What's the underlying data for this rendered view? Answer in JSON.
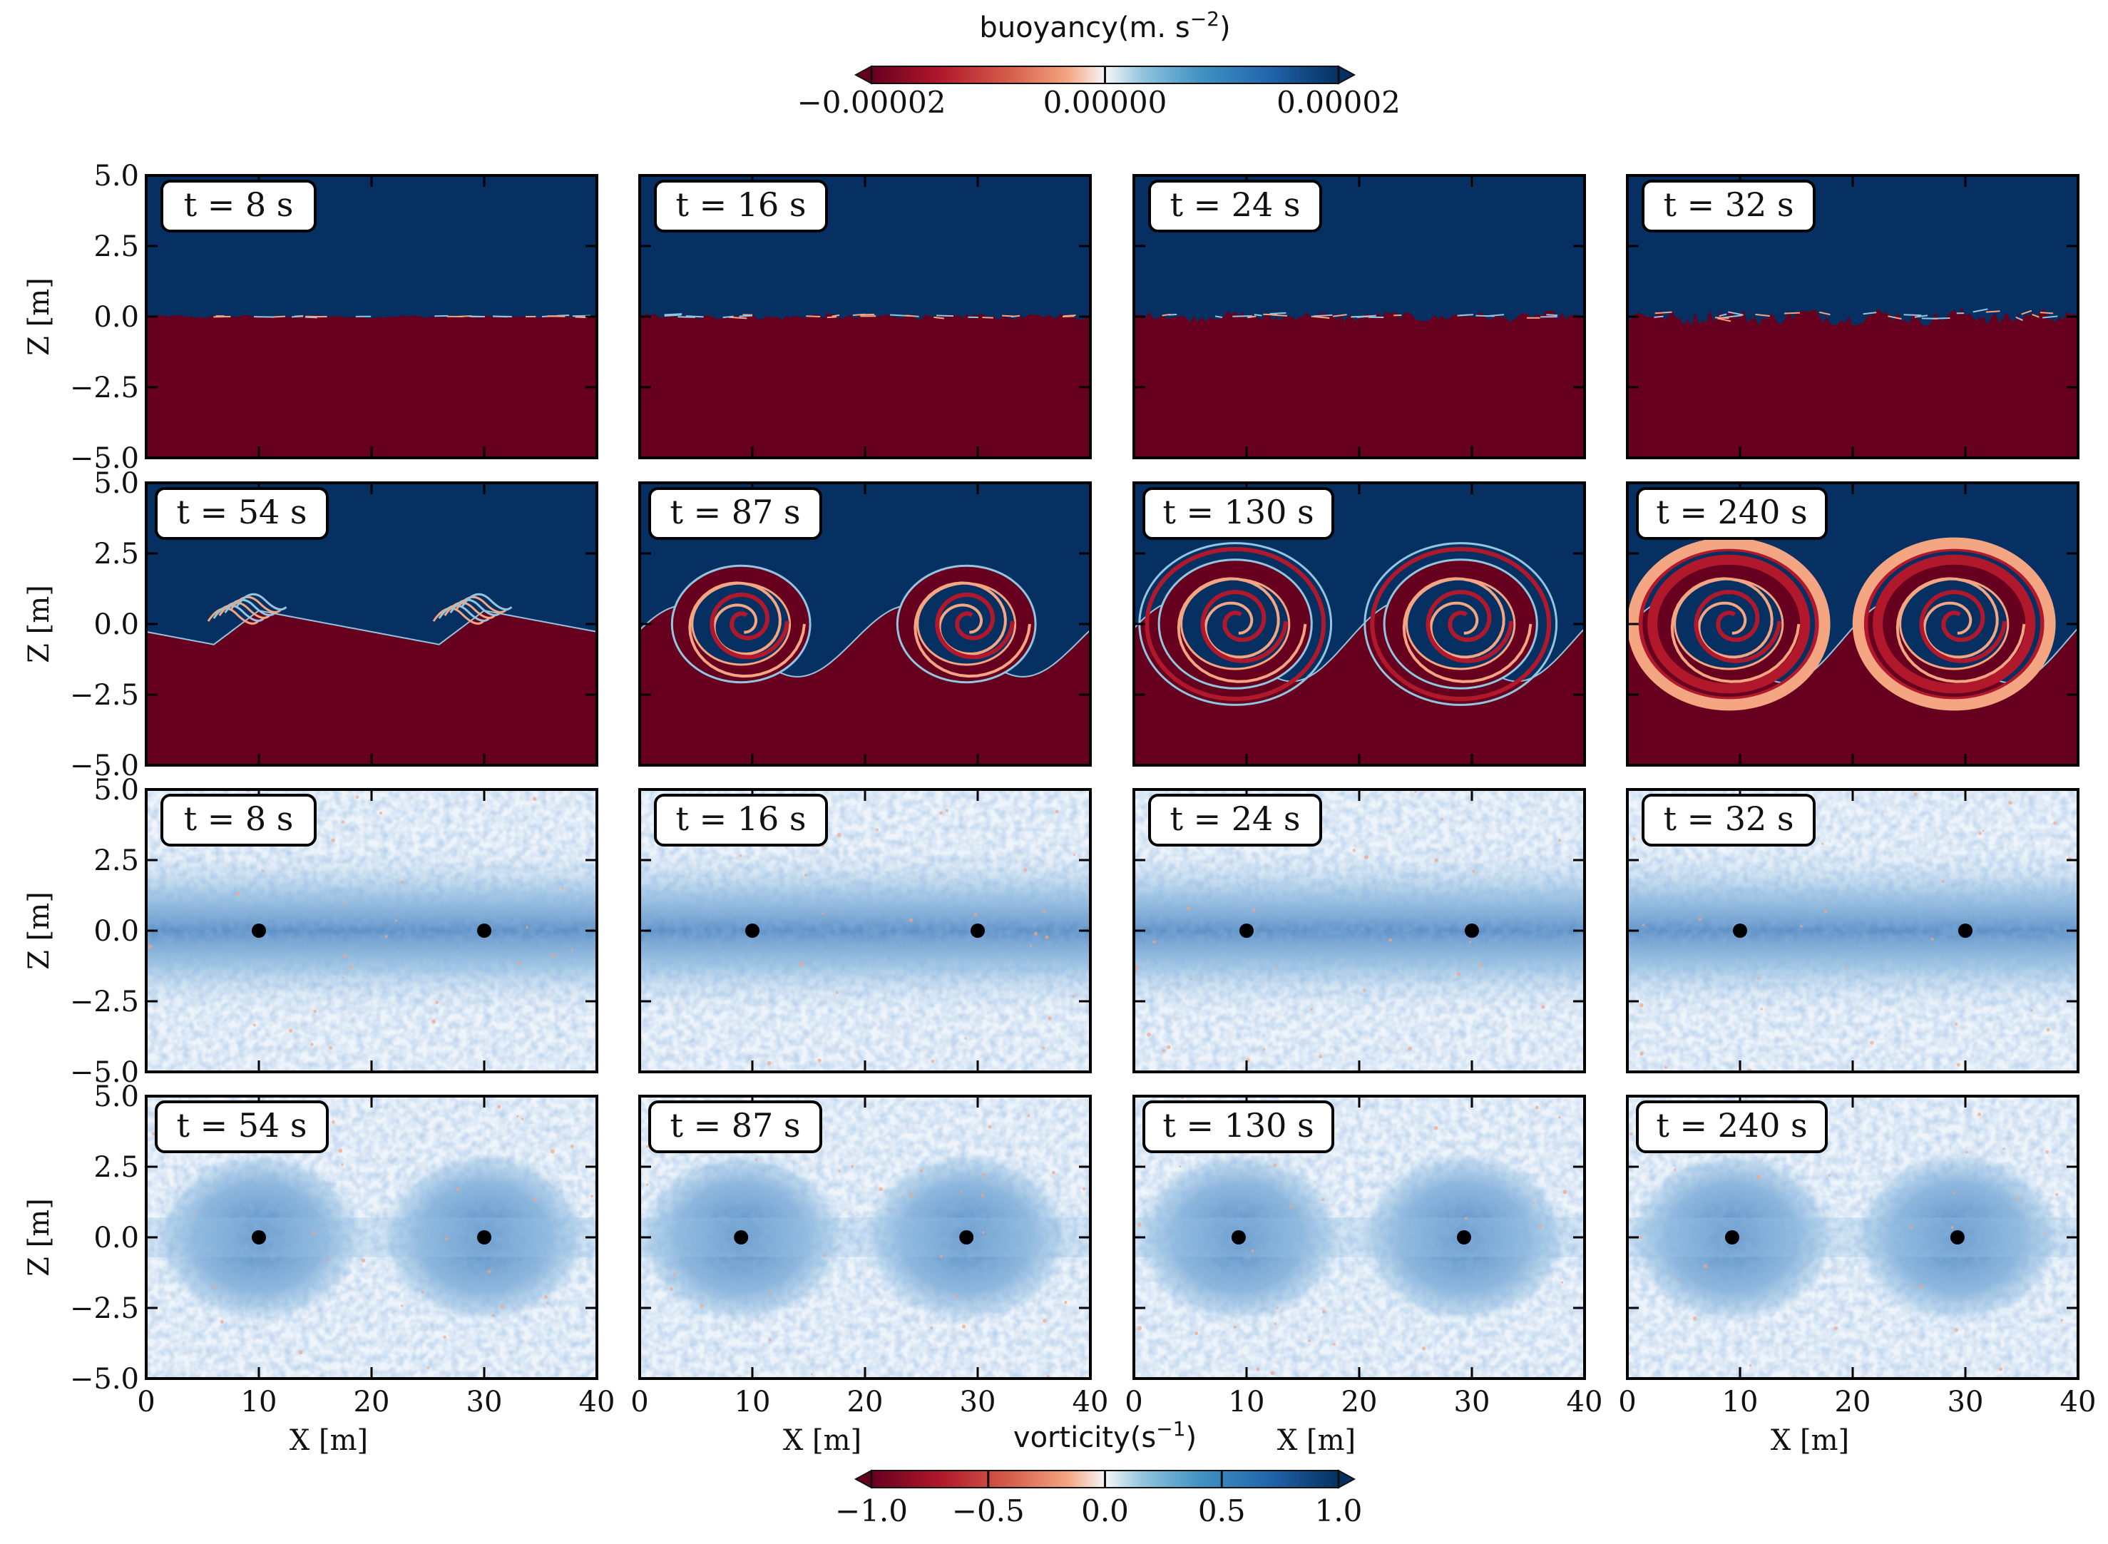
{
  "chart_data": {
    "type": "heatmap",
    "grid": {
      "rows": 4,
      "cols": 4
    },
    "x_axis": {
      "label": "X [m]",
      "range": [
        0,
        40
      ],
      "ticks": [
        "0",
        "10",
        "20",
        "30",
        "40"
      ],
      "tick_values": [
        0,
        10,
        20,
        30,
        40
      ]
    },
    "y_axis": {
      "label": "Z [m]",
      "range": [
        -5,
        5
      ],
      "ticks": [
        "−5.0",
        "−2.5",
        "0.0",
        "2.5",
        "5.0"
      ],
      "tick_values": [
        -5,
        -2.5,
        0,
        2.5,
        5
      ]
    },
    "colorbars": [
      {
        "id": "buoyancy",
        "title": "buoyancy(m. s",
        "title_sup": "−2",
        "title_end": ")",
        "placement": "top",
        "range": [
          -2e-05,
          2e-05
        ],
        "ticks": [
          "−0.00002",
          "0.00000",
          "0.00002"
        ],
        "tick_values": [
          -2e-05,
          0,
          2e-05
        ],
        "colormap": "RdBu"
      },
      {
        "id": "vorticity",
        "title": "vorticity(s",
        "title_sup": "−1",
        "title_end": ")",
        "placement": "bottom",
        "range": [
          -1.0,
          1.0
        ],
        "ticks": [
          "−1.0",
          "−0.5",
          "0.0",
          "0.5",
          "1.0"
        ],
        "tick_values": [
          -1,
          -0.5,
          0,
          0.5,
          1
        ],
        "colormap": "RdBu"
      }
    ],
    "colors": {
      "neg_dark": "#67001f",
      "neg": "#b2182b",
      "neg_light": "#f4a582",
      "zero": "#f7f7f7",
      "pos_light": "#92c5de",
      "pos": "#2166ac",
      "pos_dark": "#053061"
    },
    "rows": [
      {
        "field": "buoyancy",
        "panels": [
          {
            "time": "t = 8 s",
            "interface_amplitude": 0.05,
            "stage": "flat"
          },
          {
            "time": "t = 16 s",
            "interface_amplitude": 0.1,
            "stage": "flat"
          },
          {
            "time": "t = 24 s",
            "interface_amplitude": 0.15,
            "stage": "flat"
          },
          {
            "time": "t = 32 s",
            "interface_amplitude": 0.25,
            "stage": "flat"
          }
        ]
      },
      {
        "field": "buoyancy",
        "panels": [
          {
            "time": "t = 54 s",
            "interface_amplitude": 0.75,
            "stage": "wave"
          },
          {
            "time": "t = 87 s",
            "interface_amplitude": 2.3,
            "stage": "rollup"
          },
          {
            "time": "t = 130 s",
            "interface_amplitude": 2.6,
            "stage": "braid"
          },
          {
            "time": "t = 240 s",
            "interface_amplitude": 2.7,
            "stage": "mixed"
          }
        ]
      },
      {
        "field": "vorticity",
        "panels": [
          {
            "time": "t = 8 s",
            "vortex_centers_x": [
              10,
              30
            ],
            "vortex_centers_z": [
              0,
              0
            ],
            "shear_layer_halfwidth": 2.5
          },
          {
            "time": "t = 16 s",
            "vortex_centers_x": [
              10,
              30
            ],
            "vortex_centers_z": [
              0,
              0
            ],
            "shear_layer_halfwidth": 2.5
          },
          {
            "time": "t = 24 s",
            "vortex_centers_x": [
              10,
              30
            ],
            "vortex_centers_z": [
              0,
              0
            ],
            "shear_layer_halfwidth": 2.5
          },
          {
            "time": "t = 32 s",
            "vortex_centers_x": [
              10,
              30
            ],
            "vortex_centers_z": [
              0,
              0
            ],
            "shear_layer_halfwidth": 2.5
          }
        ]
      },
      {
        "field": "vorticity",
        "panels": [
          {
            "time": "t = 54 s",
            "vortex_centers_x": [
              10,
              30
            ],
            "vortex_centers_z": [
              0,
              0
            ],
            "shear_layer_halfwidth": 2.0
          },
          {
            "time": "t = 87 s",
            "vortex_centers_x": [
              9,
              29
            ],
            "vortex_centers_z": [
              0,
              0
            ],
            "shear_layer_halfwidth": 2.0
          },
          {
            "time": "t = 130 s",
            "vortex_centers_x": [
              9.3,
              29.3
            ],
            "vortex_centers_z": [
              0,
              0
            ],
            "shear_layer_halfwidth": 2.0
          },
          {
            "time": "t = 240 s",
            "vortex_centers_x": [
              9.3,
              29.3
            ],
            "vortex_centers_z": [
              0,
              0
            ],
            "shear_layer_halfwidth": 2.0
          }
        ]
      }
    ]
  }
}
